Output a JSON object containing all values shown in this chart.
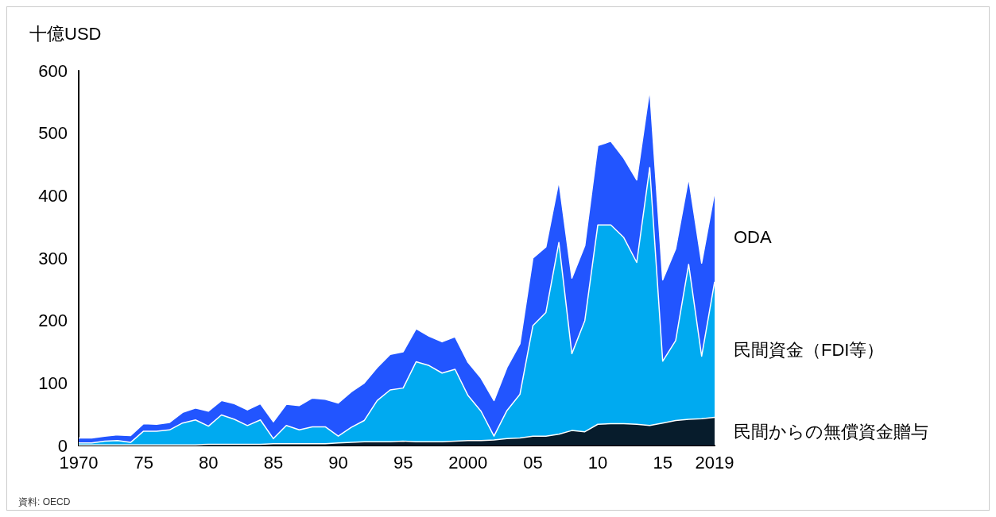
{
  "chart_data": {
    "type": "area",
    "stacked": true,
    "ylabel": "十億USD",
    "x": [
      1970,
      1971,
      1972,
      1973,
      1974,
      1975,
      1976,
      1977,
      1978,
      1979,
      1980,
      1981,
      1982,
      1983,
      1984,
      1985,
      1986,
      1987,
      1988,
      1989,
      1990,
      1991,
      1992,
      1993,
      1994,
      1995,
      1996,
      1997,
      1998,
      1999,
      2000,
      2001,
      2002,
      2003,
      2004,
      2005,
      2006,
      2007,
      2008,
      2009,
      2010,
      2011,
      2012,
      2013,
      2014,
      2015,
      2016,
      2017,
      2018,
      2019
    ],
    "series": [
      {
        "name": "民間からの無償資金贈与",
        "color": "#071c2c",
        "values": [
          1,
          1,
          1,
          1,
          1,
          1,
          1,
          1,
          1,
          1,
          2,
          2,
          2,
          2,
          2,
          3,
          3,
          3,
          3,
          3,
          4,
          5,
          6,
          6,
          6,
          7,
          6,
          6,
          6,
          7,
          8,
          8,
          9,
          11,
          12,
          15,
          15,
          18,
          24,
          22,
          34,
          35,
          35,
          34,
          32,
          36,
          40,
          42,
          43,
          45
        ]
      },
      {
        "name": "民間資金（FDI等）",
        "color": "#00aaf0",
        "values": [
          3,
          3,
          6,
          7,
          4,
          22,
          22,
          24,
          35,
          40,
          29,
          47,
          40,
          30,
          39,
          8,
          29,
          22,
          27,
          27,
          11,
          24,
          34,
          66,
          83,
          85,
          128,
          122,
          110,
          115,
          72,
          47,
          6,
          45,
          70,
          177,
          198,
          307,
          123,
          178,
          319,
          318,
          298,
          259,
          413,
          99,
          128,
          248,
          100,
          217
        ]
      },
      {
        "name": "ODA",
        "color": "#2255ff",
        "values": [
          8,
          8,
          8,
          9,
          11,
          12,
          11,
          12,
          17,
          19,
          24,
          23,
          25,
          25,
          26,
          27,
          34,
          39,
          46,
          44,
          53,
          57,
          60,
          53,
          57,
          58,
          53,
          47,
          50,
          52,
          53,
          53,
          57,
          69,
          81,
          108,
          105,
          98,
          121,
          120,
          127,
          134,
          127,
          132,
          125,
          130,
          147,
          138,
          149,
          143
        ]
      }
    ],
    "xlim": [
      1970,
      2019
    ],
    "xticks": [
      1970,
      {
        "value": 1975,
        "label": "75"
      },
      {
        "value": 1980,
        "label": "80"
      },
      {
        "value": 1985,
        "label": "85"
      },
      {
        "value": 1990,
        "label": "90"
      },
      {
        "value": 1995,
        "label": "95"
      },
      2000,
      {
        "value": 2005,
        "label": "05"
      },
      {
        "value": 2010,
        "label": "10"
      },
      {
        "value": 2015,
        "label": "15"
      },
      2019
    ],
    "ylim": [
      0,
      600
    ],
    "yticks": [
      0,
      100,
      200,
      300,
      400,
      500,
      600
    ],
    "grid": false,
    "legend": false,
    "annotations": [
      "資料: OECD"
    ]
  }
}
